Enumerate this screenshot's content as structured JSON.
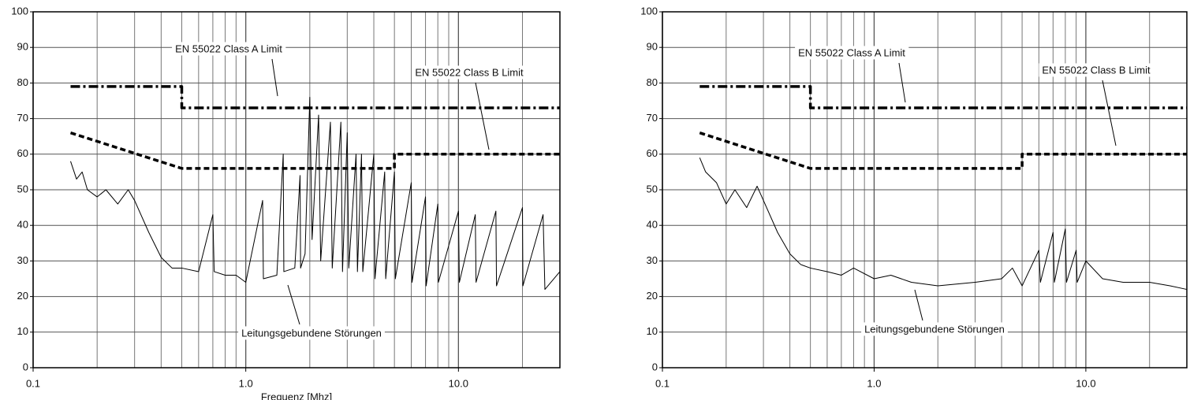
{
  "chart_data": [
    {
      "type": "line",
      "xscale": "log",
      "grid": true,
      "xlabel": "Frequenz [Mhz]",
      "xlim": [
        0.1,
        30
      ],
      "ylim": [
        0,
        100
      ],
      "xticks": [
        0.1,
        {
          "value": 1,
          "label": "1.0"
        },
        {
          "value": 10,
          "label": "10.0"
        }
      ],
      "yticks": [
        0,
        10,
        20,
        30,
        40,
        50,
        60,
        70,
        80,
        90,
        100
      ],
      "series": [
        {
          "name": "EN 55022 Class A Limit",
          "color": "#000000",
          "style": "dash-dot",
          "x": [
            0.15,
            0.5,
            0.5,
            30
          ],
          "values": [
            79,
            79,
            73,
            73
          ]
        },
        {
          "name": "EN 55022 Class B Limit",
          "color": "#000000",
          "style": "dashed",
          "x": [
            0.15,
            0.5,
            5,
            5,
            30
          ],
          "values": [
            66,
            56,
            56,
            60,
            60
          ]
        },
        {
          "name": "Leitungsgebundene Störungen",
          "color": "#000000",
          "style": "solid",
          "x": [
            0.15,
            0.16,
            0.17,
            0.18,
            0.2,
            0.22,
            0.25,
            0.28,
            0.3,
            0.35,
            0.4,
            0.45,
            0.5,
            0.6,
            0.7,
            0.71,
            0.8,
            0.9,
            1.0,
            1.2,
            1.21,
            1.4,
            1.5,
            1.51,
            1.7,
            1.8,
            1.81,
            1.9,
            2.0,
            2.05,
            2.2,
            2.25,
            2.5,
            2.55,
            2.8,
            2.85,
            3.0,
            3.05,
            3.3,
            3.35,
            3.5,
            3.55,
            4.0,
            4.05,
            4.5,
            4.55,
            5.0,
            5.05,
            6,
            6.05,
            7,
            7.05,
            8,
            8.05,
            10,
            10.1,
            12,
            12.1,
            15,
            15.1,
            20,
            20.1,
            25,
            25.5,
            30
          ],
          "values": [
            58,
            53,
            55,
            50,
            48,
            50,
            46,
            50,
            47,
            38,
            31,
            28,
            28,
            27,
            43,
            27,
            26,
            26,
            24,
            47,
            25,
            26,
            60,
            27,
            28,
            54,
            28,
            32,
            76,
            36,
            71,
            30,
            69,
            28,
            69,
            27,
            66,
            28,
            60,
            27,
            60,
            27,
            60,
            25,
            55,
            25,
            55,
            25,
            52,
            24,
            48,
            23,
            46,
            24,
            44,
            24,
            43,
            24,
            44,
            23,
            45,
            23,
            43,
            22,
            27
          ]
        }
      ]
    },
    {
      "type": "line",
      "xscale": "log",
      "grid": true,
      "xlim": [
        0.1,
        30
      ],
      "ylim": [
        0,
        100
      ],
      "xticks": [
        0.1,
        {
          "value": 1,
          "label": "1.0"
        },
        {
          "value": 10,
          "label": "10.0"
        }
      ],
      "yticks": [
        0,
        10,
        20,
        30,
        40,
        50,
        60,
        70,
        80,
        90,
        100
      ],
      "series": [
        {
          "name": "EN 55022 Class A Limit",
          "color": "#000000",
          "style": "dash-dot",
          "x": [
            0.15,
            0.5,
            0.5,
            30
          ],
          "values": [
            79,
            79,
            73,
            73
          ]
        },
        {
          "name": "EN 55022 Class B Limit",
          "color": "#000000",
          "style": "dashed",
          "x": [
            0.15,
            0.5,
            5,
            5,
            30
          ],
          "values": [
            66,
            56,
            56,
            60,
            60
          ]
        },
        {
          "name": "Leitungsgebundene Störungen",
          "color": "#000000",
          "style": "solid",
          "x": [
            0.15,
            0.16,
            0.18,
            0.2,
            0.22,
            0.25,
            0.28,
            0.3,
            0.35,
            0.4,
            0.45,
            0.5,
            0.6,
            0.7,
            0.8,
            1.0,
            1.2,
            1.5,
            2,
            3,
            4,
            4.5,
            5,
            6,
            6.1,
            7,
            7.1,
            8,
            8.1,
            9,
            9.1,
            10,
            12,
            15,
            20,
            25,
            30
          ],
          "values": [
            59,
            55,
            52,
            46,
            50,
            45,
            51,
            47,
            38,
            32,
            29,
            28,
            27,
            26,
            28,
            25,
            26,
            24,
            23,
            24,
            25,
            28,
            23,
            33,
            24,
            38,
            24,
            39,
            24,
            33,
            24,
            30,
            25,
            24,
            24,
            23,
            22
          ]
        }
      ]
    }
  ]
}
